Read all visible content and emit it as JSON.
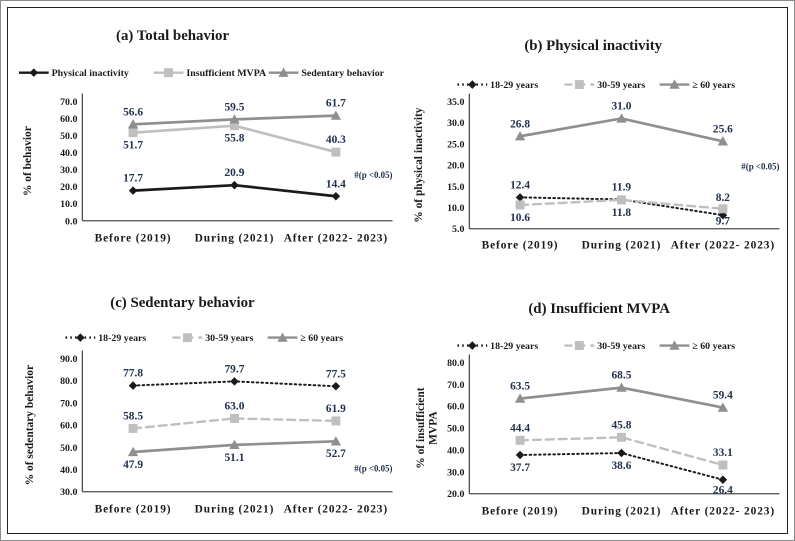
{
  "figure": {
    "colors": {
      "black": "#1a1a1a",
      "light_gray": "#bfbfbf",
      "mid_gray": "#8f8f8f",
      "data_label": "#22314f",
      "background": "#ffffff",
      "outer_border": "#8c8c8c",
      "inner_border": "#222222"
    }
  },
  "chart_data": [
    {
      "id": "a",
      "type": "line",
      "title": "(a) Total behavior",
      "ylabel_lines": [
        "% of behavior"
      ],
      "ylim": [
        0,
        70
      ],
      "ytick_step": 10,
      "grid": false,
      "legend_position": "top",
      "categories": [
        "Before (2019)",
        "During (2021)",
        "After (2022- 2023)"
      ],
      "annotation": "#(p <0.05)",
      "annotation_y": 25,
      "series": [
        {
          "name": "Physical inactivity",
          "values": [
            17.7,
            20.9,
            14.4
          ],
          "color_key": "black",
          "line": "solid",
          "marker": "diamond",
          "label_pos": [
            "above",
            "above",
            "above"
          ]
        },
        {
          "name": "Insufficient MVPA",
          "values": [
            51.7,
            55.8,
            40.3
          ],
          "color_key": "light_gray",
          "line": "solid",
          "marker": "square",
          "label_pos": [
            "below",
            "below",
            "above"
          ]
        },
        {
          "name": "Sedentary behavior",
          "values": [
            56.6,
            59.5,
            61.7
          ],
          "color_key": "mid_gray",
          "line": "solid",
          "marker": "triangle",
          "label_pos": [
            "above",
            "above",
            "above"
          ]
        }
      ]
    },
    {
      "id": "b",
      "type": "line",
      "title": "(b) Physical inactivity",
      "ylabel_lines": [
        "% of physical inactivity"
      ],
      "ylim": [
        5,
        35
      ],
      "ytick_step": 5,
      "grid": false,
      "legend_position": "top",
      "categories": [
        "Before (2019)",
        "During (2021)",
        "After (2022- 2023)"
      ],
      "annotation": "#(p <0.05)",
      "annotation_y": 19,
      "series": [
        {
          "name": "18-29 years",
          "values": [
            12.4,
            11.9,
            8.2
          ],
          "color_key": "black",
          "line": "dotted",
          "marker": "diamond",
          "label_pos": [
            "above",
            "above",
            "above"
          ],
          "label_dy": [
            0,
            0,
            -5
          ]
        },
        {
          "name": "30-59 years",
          "values": [
            10.6,
            11.8,
            9.7
          ],
          "color_key": "light_gray",
          "line": "dashed",
          "marker": "square",
          "label_pos": [
            "below",
            "below",
            "below"
          ]
        },
        {
          "name": "≥ 60 years",
          "values": [
            26.8,
            31.0,
            25.6
          ],
          "color_key": "mid_gray",
          "line": "solid",
          "marker": "triangle",
          "label_pos": [
            "above",
            "above",
            "above"
          ]
        }
      ]
    },
    {
      "id": "c",
      "type": "line",
      "title": "(c) Sedentary behavior",
      "ylabel_lines": [
        "% of sedentary behavior"
      ],
      "ylim": [
        30,
        90
      ],
      "ytick_step": 10,
      "grid": false,
      "legend_position": "top",
      "categories": [
        "Before (2019)",
        "During (2021)",
        "After (2022- 2023)"
      ],
      "annotation": "#(p <0.05)",
      "annotation_y": 39,
      "series": [
        {
          "name": "18-29 years",
          "values": [
            77.8,
            79.7,
            77.5
          ],
          "color_key": "black",
          "line": "dotted",
          "marker": "diamond",
          "label_pos": [
            "above",
            "above",
            "above"
          ]
        },
        {
          "name": "30-59 years",
          "values": [
            58.5,
            63.0,
            61.9
          ],
          "color_key": "light_gray",
          "line": "dashed",
          "marker": "square",
          "label_pos": [
            "above",
            "above",
            "above"
          ]
        },
        {
          "name": "≥ 60 years",
          "values": [
            47.9,
            51.1,
            52.7
          ],
          "color_key": "mid_gray",
          "line": "solid",
          "marker": "triangle",
          "label_pos": [
            "below",
            "below",
            "below"
          ]
        }
      ]
    },
    {
      "id": "d",
      "type": "line",
      "title": "(d) Insufficient MVPA",
      "ylabel_lines": [
        "% of insufficient",
        "MVPA"
      ],
      "ylim": [
        20,
        80
      ],
      "ytick_step": 10,
      "grid": false,
      "legend_position": "top",
      "categories": [
        "Before (2019)",
        "During (2021)",
        "After (2022- 2023)"
      ],
      "annotation": null,
      "annotation_y": null,
      "series": [
        {
          "name": "18-29 years",
          "values": [
            37.7,
            38.6,
            26.4
          ],
          "color_key": "black",
          "line": "dotted",
          "marker": "diamond",
          "label_pos": [
            "below",
            "below",
            "below"
          ],
          "label_dy": [
            0,
            0,
            -2
          ]
        },
        {
          "name": "30-59 years",
          "values": [
            44.4,
            45.8,
            33.1
          ],
          "color_key": "light_gray",
          "line": "dashed",
          "marker": "square",
          "label_pos": [
            "above",
            "above",
            "above"
          ]
        },
        {
          "name": "≥ 60 years",
          "values": [
            63.5,
            68.5,
            59.4
          ],
          "color_key": "mid_gray",
          "line": "solid",
          "marker": "triangle",
          "label_pos": [
            "above",
            "above",
            "above"
          ]
        }
      ]
    }
  ]
}
